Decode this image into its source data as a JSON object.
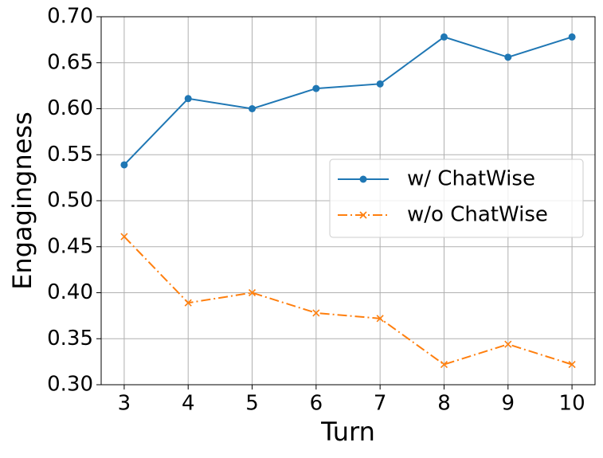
{
  "chart_data": {
    "type": "line",
    "xlabel": "Turn",
    "ylabel": "Engagingness",
    "x": [
      3,
      4,
      5,
      6,
      7,
      8,
      9,
      10
    ],
    "series": [
      {
        "name": "w/ ChatWise",
        "color": "#1f77b4",
        "marker": "o",
        "linestyle": "solid",
        "values": [
          0.539,
          0.611,
          0.6,
          0.622,
          0.627,
          0.678,
          0.656,
          0.678
        ]
      },
      {
        "name": "w/o ChatWise",
        "color": "#ff7f0e",
        "marker": "x",
        "linestyle": "dashdot",
        "values": [
          0.461,
          0.389,
          0.4,
          0.378,
          0.372,
          0.322,
          0.344,
          0.322
        ]
      }
    ],
    "xlim": [
      2.64,
      10.36
    ],
    "xticks": [
      3,
      4,
      5,
      6,
      7,
      8,
      9,
      10
    ],
    "ylim": [
      0.3,
      0.7
    ],
    "yticks": [
      {
        "value": 0.3,
        "label": "0.30"
      },
      0.35,
      {
        "value": 0.4,
        "label": "0.40"
      },
      0.45,
      {
        "value": 0.5,
        "label": "0.50"
      },
      0.55,
      {
        "value": 0.6,
        "label": "0.60"
      },
      0.65,
      {
        "value": 0.7,
        "label": "0.70"
      }
    ],
    "grid": true,
    "legend": "center right"
  }
}
